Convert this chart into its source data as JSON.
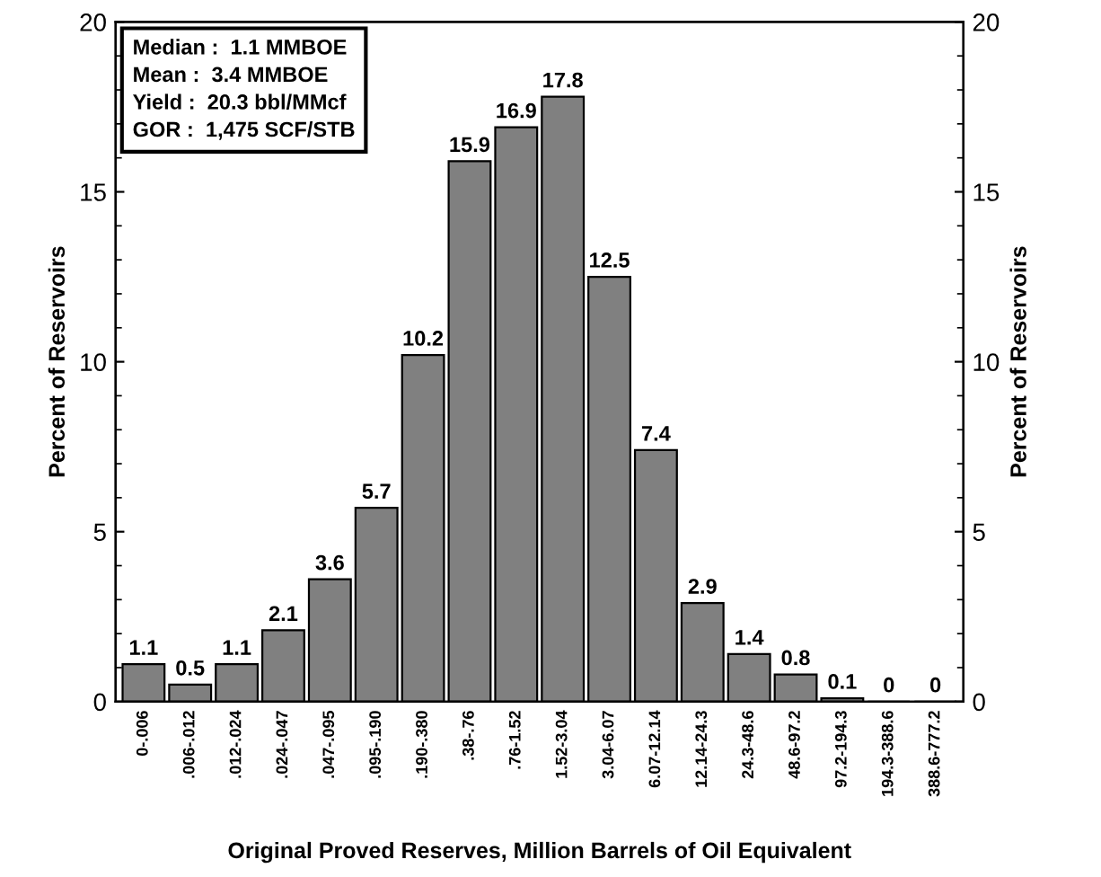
{
  "chart_data": {
    "type": "bar",
    "xlabel": "Original Proved Reserves, Million Barrels of Oil Equivalent",
    "ylabel": "Percent of Reservoirs",
    "y2label": "Percent of Reservoirs",
    "categories": [
      "0-.006",
      ".006-.012",
      ".012-.024",
      ".024-.047",
      ".047-.095",
      ".095-.190",
      ".190-.380",
      ".38-.76",
      ".76-1.52",
      "1.52-3.04",
      "3.04-6.07",
      "6.07-12.14",
      "12.14-24.3",
      "24.3-48.6",
      "48.6-97.2",
      "97.2-194.3",
      "194.3-388.6",
      "388.6-777.2"
    ],
    "values": [
      1.1,
      0.5,
      1.1,
      2.1,
      3.6,
      5.7,
      10.2,
      15.9,
      16.9,
      17.8,
      12.5,
      7.4,
      2.9,
      1.4,
      0.8,
      0.1,
      0,
      0
    ],
    "color": "#808080",
    "ylim": [
      0,
      20
    ],
    "yticks": [
      0,
      5,
      10,
      15,
      20
    ],
    "y2lim": [
      0,
      20
    ],
    "y2ticks": [
      0,
      5,
      10,
      15,
      20
    ],
    "data_labels": true,
    "grid": false,
    "legend": false,
    "annotations": [
      "Median :  1.1 MMBOE",
      "Mean :  3.4 MMBOE",
      "Yield :  20.3 bbl/MMcf",
      "GOR :  1,475 SCF/STB"
    ]
  }
}
